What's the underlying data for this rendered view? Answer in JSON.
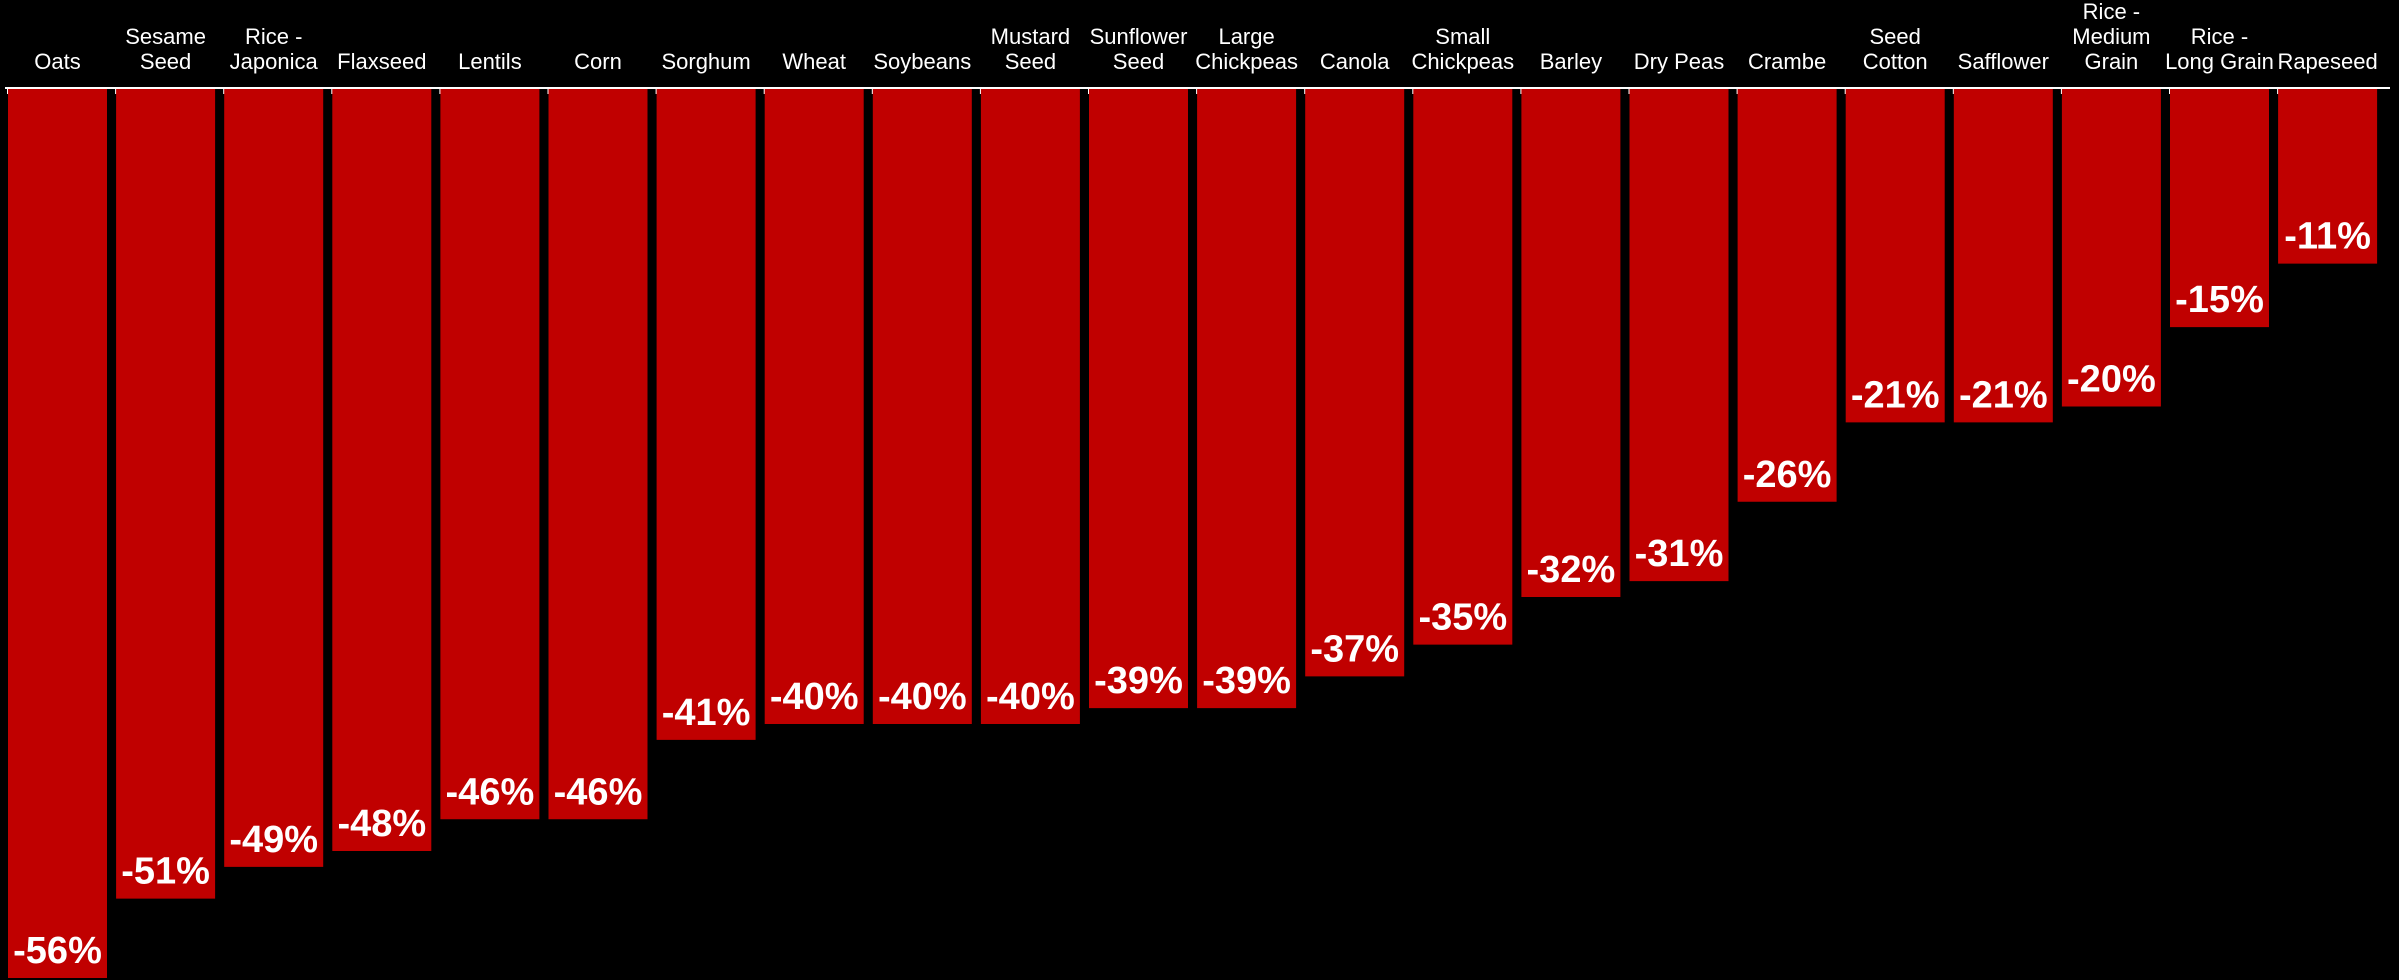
{
  "chart_data": {
    "type": "bar",
    "orientation": "vertical-downward",
    "categories": [
      [
        "Oats"
      ],
      [
        "Sesame",
        "Seed"
      ],
      [
        "Rice -",
        "Japonica"
      ],
      [
        "Flaxseed"
      ],
      [
        "Lentils"
      ],
      [
        "Corn"
      ],
      [
        "Sorghum"
      ],
      [
        "Wheat"
      ],
      [
        "Soybeans"
      ],
      [
        "Mustard",
        "Seed"
      ],
      [
        "Sunflower",
        "Seed"
      ],
      [
        "Large",
        "Chickpeas"
      ],
      [
        "Canola"
      ],
      [
        "Small",
        "Chickpeas"
      ],
      [
        "Barley"
      ],
      [
        "Dry Peas"
      ],
      [
        "Crambe"
      ],
      [
        "Seed",
        "Cotton"
      ],
      [
        "Safflower"
      ],
      [
        "Rice -",
        "Medium",
        "Grain"
      ],
      [
        "Rice -",
        "Long Grain"
      ],
      [
        "Rapeseed"
      ]
    ],
    "values": [
      -56,
      -51,
      -49,
      -48,
      -46,
      -46,
      -41,
      -40,
      -40,
      -40,
      -39,
      -39,
      -37,
      -35,
      -32,
      -31,
      -26,
      -21,
      -21,
      -20,
      -15,
      -11
    ],
    "value_labels": [
      "-56%",
      "-51%",
      "-49%",
      "-48%",
      "-46%",
      "-46%",
      "-41%",
      "-40%",
      "-40%",
      "-40%",
      "-39%",
      "-39%",
      "-37%",
      "-35%",
      "-32%",
      "-31%",
      "-26%",
      "-21%",
      "-21%",
      "-20%",
      "-15%",
      "-11%"
    ],
    "title": "",
    "xlabel": "",
    "ylabel": "",
    "ylim": [
      -56,
      0
    ],
    "grid": false,
    "legend": "none",
    "colors": {
      "bar": "#c00000",
      "background": "#000000",
      "axis": "#ffffff",
      "text": "#ffffff"
    }
  }
}
